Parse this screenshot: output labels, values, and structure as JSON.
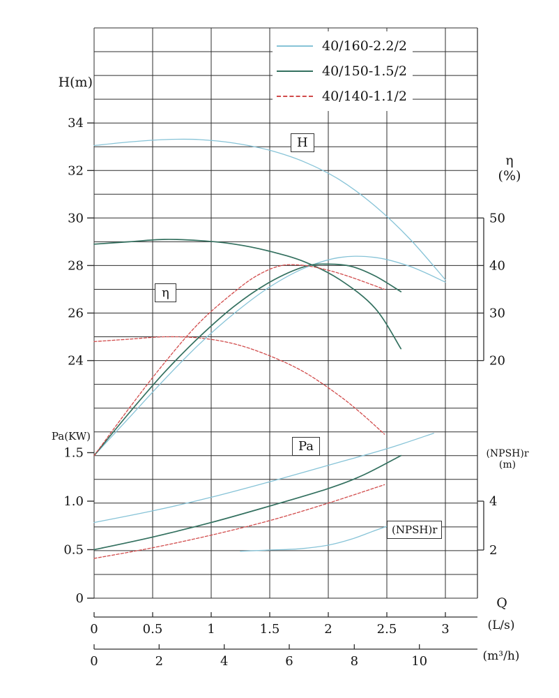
{
  "chart_data": {
    "type": "line",
    "description": "Centrifugal pump performance curves: H, efficiency, shaft power and NPSHr versus flow rate for three pump models",
    "legend": [
      {
        "label": "40/160-2.2/2",
        "color": "#86c3d7",
        "style": "solid"
      },
      {
        "label": "40/150-1.5/2",
        "color": "#33705f",
        "style": "solid"
      },
      {
        "label": "40/140-1.1/2",
        "color": "#d14b4b",
        "style": "dashed"
      }
    ],
    "legend_position": "top-right",
    "grid": true,
    "axes": {
      "x": {
        "label": "Q",
        "unit_primary": "(L/s)",
        "unit_secondary": "(m³/h)",
        "ticks_ls": [
          "0",
          "0.5",
          "1",
          "1.5",
          "2",
          "2.5",
          "3"
        ],
        "ticks_m3h": [
          "0",
          "2",
          "4",
          "6",
          "8",
          "10"
        ],
        "range_ls": [
          0,
          3.27
        ]
      },
      "h": {
        "label": "H(m)",
        "ticks": [
          "34",
          "32",
          "30",
          "28",
          "26",
          "24"
        ],
        "range": [
          24,
          34
        ]
      },
      "pa": {
        "label": "Pa(KW)",
        "ticks": [
          "1.5",
          "1.0",
          "0.5",
          "0"
        ],
        "range": [
          0,
          1.5
        ]
      },
      "eta": {
        "label": "η",
        "unit": "(%)",
        "ticks": [
          "50",
          "40",
          "30",
          "20"
        ],
        "range": [
          20,
          50
        ]
      },
      "npsh": {
        "label": "(NPSH)r",
        "unit": "(m)",
        "ticks": [
          "4",
          "2"
        ],
        "range": [
          2,
          4
        ]
      }
    },
    "curve_labels": {
      "h": "H",
      "eta": "η",
      "pa": "Pa",
      "npsh": "(NPSH)r"
    },
    "series": [
      {
        "id": "h-40-160",
        "pump": "40/160-2.2/2",
        "quantity": "H",
        "scale": "h",
        "unit": "m",
        "color": "#86c3d7",
        "style": "solid",
        "points": [
          [
            0,
            33.05
          ],
          [
            0.3,
            33.2
          ],
          [
            0.6,
            33.3
          ],
          [
            0.9,
            33.3
          ],
          [
            1.2,
            33.15
          ],
          [
            1.5,
            32.85
          ],
          [
            1.8,
            32.35
          ],
          [
            2.1,
            31.6
          ],
          [
            2.4,
            30.5
          ],
          [
            2.7,
            29.1
          ],
          [
            3.0,
            27.4
          ]
        ]
      },
      {
        "id": "h-40-150",
        "pump": "40/150-1.5/2",
        "quantity": "H",
        "scale": "h",
        "unit": "m",
        "color": "#33705f",
        "style": "solid",
        "points": [
          [
            0,
            28.9
          ],
          [
            0.3,
            29.0
          ],
          [
            0.6,
            29.1
          ],
          [
            0.9,
            29.05
          ],
          [
            1.2,
            28.9
          ],
          [
            1.5,
            28.6
          ],
          [
            1.8,
            28.15
          ],
          [
            2.1,
            27.4
          ],
          [
            2.4,
            26.2
          ],
          [
            2.62,
            24.5
          ]
        ]
      },
      {
        "id": "h-40-140",
        "pump": "40/140-1.1/2",
        "quantity": "H",
        "scale": "h",
        "unit": "m",
        "color": "#d14b4b",
        "style": "dashed",
        "points": [
          [
            0,
            24.8
          ],
          [
            0.3,
            24.9
          ],
          [
            0.6,
            25.0
          ],
          [
            0.9,
            24.95
          ],
          [
            1.2,
            24.7
          ],
          [
            1.5,
            24.2
          ],
          [
            1.8,
            23.5
          ],
          [
            2.1,
            22.5
          ],
          [
            2.3,
            21.7
          ],
          [
            2.48,
            20.9
          ]
        ]
      },
      {
        "id": "eta-40-160",
        "pump": "40/160-2.2/2",
        "quantity": "η",
        "scale": "eta",
        "unit": "%",
        "color": "#86c3d7",
        "style": "solid",
        "points": [
          [
            0,
            0
          ],
          [
            0.3,
            8
          ],
          [
            0.6,
            16
          ],
          [
            0.9,
            23.5
          ],
          [
            1.2,
            30
          ],
          [
            1.5,
            35.5
          ],
          [
            1.8,
            39.5
          ],
          [
            2.1,
            41.7
          ],
          [
            2.4,
            41.7
          ],
          [
            2.7,
            39.8
          ],
          [
            3.0,
            36.5
          ]
        ]
      },
      {
        "id": "eta-40-150",
        "pump": "40/150-1.5/2",
        "quantity": "η",
        "scale": "eta",
        "unit": "%",
        "color": "#33705f",
        "style": "solid",
        "points": [
          [
            0,
            0
          ],
          [
            0.3,
            9
          ],
          [
            0.6,
            17.5
          ],
          [
            0.9,
            25
          ],
          [
            1.2,
            31.5
          ],
          [
            1.5,
            36.5
          ],
          [
            1.8,
            39.8
          ],
          [
            2.0,
            40.3
          ],
          [
            2.2,
            39.8
          ],
          [
            2.4,
            37.8
          ],
          [
            2.62,
            34.5
          ]
        ]
      },
      {
        "id": "eta-40-140",
        "pump": "40/140-1.1/2",
        "quantity": "η",
        "scale": "eta",
        "unit": "%",
        "color": "#d14b4b",
        "style": "dashed",
        "points": [
          [
            0,
            0
          ],
          [
            0.3,
            10
          ],
          [
            0.6,
            19.5
          ],
          [
            0.9,
            28
          ],
          [
            1.2,
            34.5
          ],
          [
            1.4,
            38
          ],
          [
            1.6,
            40
          ],
          [
            1.8,
            40
          ],
          [
            2.0,
            39
          ],
          [
            2.2,
            37.5
          ],
          [
            2.48,
            35
          ]
        ]
      },
      {
        "id": "pa-40-160",
        "pump": "40/160-2.2/2",
        "quantity": "Pa",
        "scale": "pa",
        "unit": "KW",
        "color": "#86c3d7",
        "style": "solid",
        "points": [
          [
            0,
            0.78
          ],
          [
            0.5,
            0.9
          ],
          [
            1.0,
            1.04
          ],
          [
            1.5,
            1.2
          ],
          [
            2.0,
            1.37
          ],
          [
            2.5,
            1.54
          ],
          [
            2.9,
            1.7
          ]
        ]
      },
      {
        "id": "pa-40-150",
        "pump": "40/150-1.5/2",
        "quantity": "Pa",
        "scale": "pa",
        "unit": "KW",
        "color": "#33705f",
        "style": "solid",
        "points": [
          [
            0,
            0.5
          ],
          [
            0.5,
            0.63
          ],
          [
            1.0,
            0.78
          ],
          [
            1.5,
            0.95
          ],
          [
            2.0,
            1.13
          ],
          [
            2.3,
            1.27
          ],
          [
            2.62,
            1.47
          ]
        ]
      },
      {
        "id": "pa-40-140",
        "pump": "40/140-1.1/2",
        "quantity": "Pa",
        "scale": "pa",
        "unit": "KW",
        "color": "#d14b4b",
        "style": "dashed",
        "points": [
          [
            0,
            0.41
          ],
          [
            0.5,
            0.52
          ],
          [
            1.0,
            0.65
          ],
          [
            1.5,
            0.8
          ],
          [
            2.0,
            0.98
          ],
          [
            2.48,
            1.17
          ]
        ]
      },
      {
        "id": "npshr-40-160",
        "pump": "40/160-2.2/2",
        "quantity": "(NPSH)r",
        "scale": "npsh",
        "unit": "m",
        "color": "#86c3d7",
        "style": "solid",
        "points": [
          [
            1.25,
            1.95
          ],
          [
            1.5,
            2.0
          ],
          [
            1.75,
            2.05
          ],
          [
            2.0,
            2.2
          ],
          [
            2.2,
            2.45
          ],
          [
            2.4,
            2.8
          ],
          [
            2.55,
            3.05
          ]
        ]
      }
    ]
  }
}
